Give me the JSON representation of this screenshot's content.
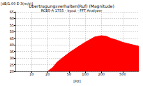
{
  "chart_data": {
    "type": "area",
    "title": "Übertragungsverhalten(Ruf) (Magnitude)",
    "subtitle": "RCB5-A 1755 - Input - FFT Analyzer",
    "y_label": "[dB/1.00 E-3(m/s)]",
    "x_label": "[Hz]",
    "x": [
      20,
      25,
      30,
      40,
      50,
      70,
      100,
      150,
      200,
      250,
      300,
      400,
      500,
      700,
      1000
    ],
    "values": [
      20,
      23,
      27,
      31,
      34,
      38,
      42,
      46,
      47,
      46.5,
      45,
      43.5,
      42,
      40.5,
      39
    ],
    "color": "#ff0000",
    "log": "x",
    "xlim": [
      5,
      1000
    ],
    "xticks": [
      10,
      20,
      50,
      100,
      200,
      500
    ],
    "ylim": [
      20,
      65
    ],
    "yticks": [
      20,
      25,
      30,
      35,
      40,
      45,
      50,
      55,
      60,
      65
    ],
    "grid": true
  }
}
